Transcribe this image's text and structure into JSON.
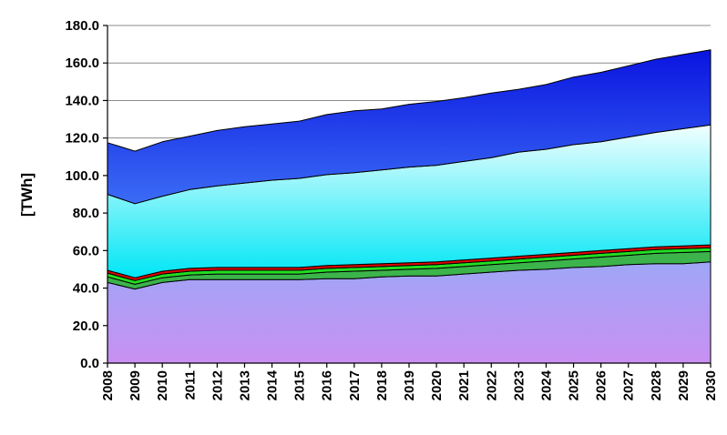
{
  "chart_data": {
    "type": "area",
    "stacked": true,
    "xlabel": "",
    "ylabel": "[TWh]",
    "ylim": [
      0,
      180
    ],
    "y_ticks": [
      "0.0",
      "20.0",
      "40.0",
      "60.0",
      "80.0",
      "100.0",
      "120.0",
      "140.0",
      "160.0",
      "180.0"
    ],
    "grid": "horizontal",
    "legend": "none",
    "x": [
      "2008",
      "2009",
      "2010",
      "2011",
      "2012",
      "2013",
      "2014",
      "2015",
      "2016",
      "2017",
      "2018",
      "2019",
      "2020",
      "2021",
      "2022",
      "2023",
      "2024",
      "2025",
      "2026",
      "2027",
      "2028",
      "2029",
      "2030"
    ],
    "series": [
      {
        "color": "#a9a2f5",
        "values": [
          43,
          39.5,
          43,
          44.5,
          44.5,
          44.5,
          44.5,
          44.5,
          45,
          45,
          46,
          46.5,
          46.5,
          47.5,
          48.5,
          49.5,
          50,
          51,
          51.5,
          52.5,
          53,
          53,
          54
        ]
      },
      {
        "color": "#3cb44b",
        "values": [
          3,
          2.5,
          2.5,
          2.5,
          3,
          3,
          3,
          3,
          3.5,
          4,
          3.5,
          3.5,
          4,
          4,
          4,
          4,
          4.5,
          4.5,
          5,
          5,
          5.5,
          6,
          5.5
        ]
      },
      {
        "color": "#22dd22",
        "values": [
          2,
          2,
          2,
          2,
          2,
          2,
          2,
          2,
          2,
          2,
          2,
          2,
          2,
          2,
          2,
          2,
          2,
          2,
          2,
          2,
          2,
          2,
          2
        ]
      },
      {
        "color": "#e00000",
        "values": [
          1.5,
          1.5,
          1.5,
          1.5,
          1.5,
          1.5,
          1.5,
          1.5,
          1.5,
          1.5,
          1.5,
          1.5,
          1.5,
          1.5,
          1.5,
          1.5,
          1.5,
          1.5,
          1.5,
          1.5,
          1.5,
          1.5,
          1.5
        ]
      },
      {
        "color": "#00e5f5",
        "values": [
          40.5,
          39.5,
          40,
          42,
          43.5,
          45,
          46.5,
          47.5,
          48.5,
          49,
          50,
          51,
          51.5,
          52.5,
          53.5,
          55.5,
          56,
          57.5,
          58,
          59.5,
          61,
          62.5,
          64
        ]
      },
      {
        "color": "#1a2cf0",
        "values": [
          27.5,
          28,
          29,
          28.5,
          29.5,
          30,
          30,
          30.5,
          32,
          33,
          32.5,
          33.5,
          34,
          34,
          34.5,
          33.5,
          34.5,
          36,
          37,
          38,
          39,
          39.5,
          40
        ]
      }
    ]
  }
}
